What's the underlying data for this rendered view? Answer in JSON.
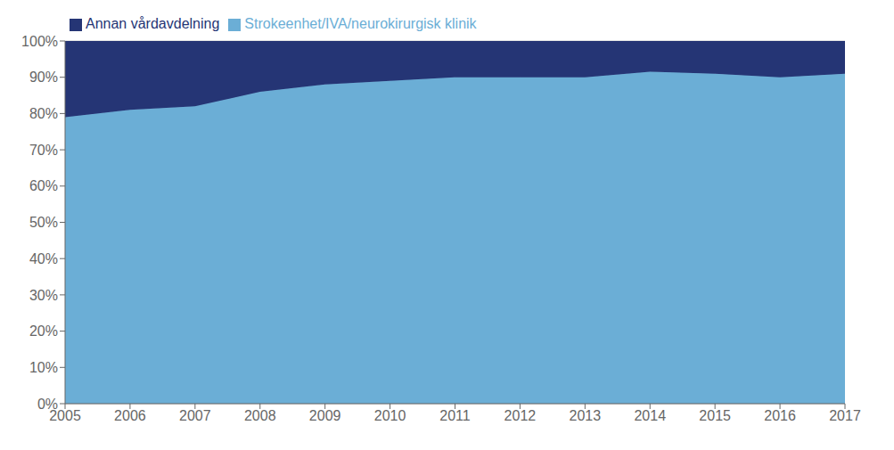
{
  "chart_data": {
    "type": "area",
    "stacked": true,
    "x": [
      2005,
      2006,
      2007,
      2008,
      2009,
      2010,
      2011,
      2012,
      2013,
      2014,
      2015,
      2016,
      2017
    ],
    "series": [
      {
        "name": "Strokeenhet/IVA/neurokirurgisk klinik",
        "color": "#6BAED6",
        "values": [
          79,
          81,
          82,
          86,
          88,
          89,
          90,
          90,
          90,
          91.5,
          91,
          90,
          91
        ]
      },
      {
        "name": "Annan vårdavdelning",
        "color": "#253575",
        "values": [
          21,
          19,
          18,
          14,
          12,
          11,
          10,
          10,
          10,
          8.5,
          9,
          10,
          9
        ]
      }
    ],
    "xlim": [
      2005,
      2017
    ],
    "xticks": [
      2005,
      2006,
      2007,
      2008,
      2009,
      2010,
      2011,
      2012,
      2013,
      2014,
      2015,
      2016,
      2017
    ],
    "ylim": [
      0,
      100
    ],
    "yticks": [
      {
        "value": 0,
        "label": "0%"
      },
      {
        "value": 10,
        "label": "10%"
      },
      {
        "value": 20,
        "label": "20%"
      },
      {
        "value": 30,
        "label": "30%"
      },
      {
        "value": 40,
        "label": "40%"
      },
      {
        "value": 50,
        "label": "50%"
      },
      {
        "value": 60,
        "label": "60%"
      },
      {
        "value": 70,
        "label": "70%"
      },
      {
        "value": 80,
        "label": "80%"
      },
      {
        "value": 90,
        "label": "90%"
      },
      {
        "value": 100,
        "label": "100%"
      }
    ],
    "grid": true,
    "legend": "top-left"
  }
}
